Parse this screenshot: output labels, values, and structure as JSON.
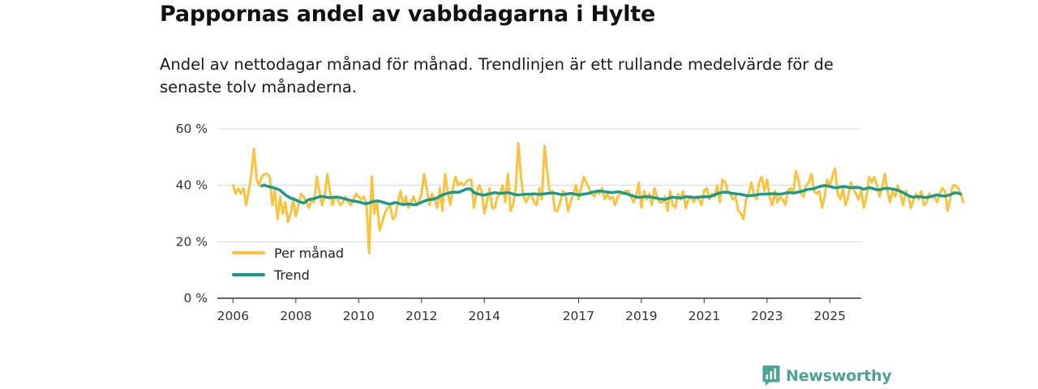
{
  "page": {
    "title": "Pappornas andel av vabbdagarna i Hylte",
    "subtitle": "Andel av nettodagar månad för månad. Trendlinjen är ett rullande medelvärde för de senaste tolv månaderna."
  },
  "brand": {
    "name": "Newsworthy",
    "icon": "newsworthy-logo-icon",
    "color": "#4aa396"
  },
  "colors": {
    "monthly": "#f9c33f",
    "trend": "#1a9a8c",
    "grid": "#d9d9d9",
    "axis": "#333333"
  },
  "chart_data": {
    "type": "line",
    "title": "Pappornas andel av vabbdagarna i Hylte",
    "xlabel": "",
    "ylabel": "",
    "xlim": [
      2005.5,
      2026.0
    ],
    "ylim": [
      0,
      60
    ],
    "y_ticks": [
      0,
      20,
      40,
      60
    ],
    "y_tick_labels": [
      "0 %",
      "20 %",
      "40 %",
      "60 %"
    ],
    "x_ticks": [
      2006,
      2008,
      2010,
      2012,
      2014,
      2017,
      2019,
      2021,
      2023,
      2025
    ],
    "x_tick_labels": [
      "2006",
      "2008",
      "2010",
      "2012",
      "2014",
      "2017",
      "2019",
      "2021",
      "2023",
      "2025"
    ],
    "grid": true,
    "legend_position": "bottom-left",
    "legend": [
      {
        "name": "Per månad",
        "color": "#f9c33f"
      },
      {
        "name": "Trend",
        "color": "#1a9a8c"
      }
    ],
    "series": [
      {
        "name": "Per månad",
        "start": 2006.0,
        "step_months": 1,
        "values": [
          40,
          37,
          39,
          37,
          39,
          33,
          38,
          44,
          53,
          42,
          40,
          43,
          44,
          44,
          43,
          33,
          38,
          28,
          36,
          30,
          34,
          27,
          30,
          35,
          29,
          33,
          37,
          36,
          34,
          32,
          35,
          34,
          43,
          38,
          33,
          36,
          44,
          38,
          33,
          36,
          35,
          33,
          34,
          36,
          34,
          33,
          35,
          37,
          36,
          35,
          36,
          33,
          16,
          43,
          30,
          34,
          24,
          27,
          30,
          32,
          33,
          28,
          29,
          34,
          38,
          33,
          36,
          32,
          34,
          36,
          33,
          34,
          37,
          44,
          39,
          33,
          37,
          35,
          32,
          39,
          31,
          44,
          38,
          33,
          39,
          43,
          40,
          41,
          40,
          41,
          42,
          42,
          32,
          37,
          40,
          38,
          30,
          34,
          39,
          32,
          32,
          36,
          37,
          40,
          34,
          44,
          31,
          33,
          39,
          55,
          43,
          36,
          34,
          36,
          37,
          34,
          33,
          39,
          35,
          54,
          45,
          37,
          38,
          31,
          31,
          34,
          38,
          37,
          31,
          34,
          37,
          40,
          35,
          39,
          43,
          41,
          39,
          37,
          36,
          38,
          37,
          39,
          35,
          37,
          35,
          36,
          33,
          36,
          37,
          37,
          38,
          38,
          36,
          34,
          36,
          41,
          32,
          38,
          35,
          37,
          33,
          39,
          36,
          34,
          34,
          36,
          31,
          38,
          33,
          32,
          37,
          35,
          38,
          32,
          35,
          36,
          34,
          36,
          35,
          33,
          38,
          39,
          35,
          37,
          36,
          40,
          34,
          42,
          41,
          38,
          37,
          35,
          36,
          31,
          30,
          28,
          35,
          37,
          41,
          37,
          35,
          41,
          43,
          38,
          42,
          36,
          33,
          38,
          34,
          36,
          35,
          33,
          38,
          39,
          37,
          45,
          42,
          37,
          36,
          40,
          41,
          44,
          38,
          37,
          38,
          32,
          36,
          42,
          40,
          43,
          46,
          37,
          35,
          39,
          33,
          36,
          41,
          39,
          37,
          35,
          38,
          32,
          36,
          43,
          41,
          43,
          40,
          36,
          39,
          44,
          38,
          34,
          38,
          36,
          40,
          37,
          33,
          38,
          36,
          32,
          35,
          37,
          35,
          38,
          33,
          34,
          37,
          36,
          36,
          34,
          37,
          39,
          38,
          31,
          35,
          40,
          40,
          39,
          37,
          34
        ],
        "color": "#f9c33f"
      },
      {
        "name": "Trend",
        "start": 2006.917,
        "step_months": 1,
        "values": [
          39.8,
          40.1,
          39.7,
          39.5,
          39.3,
          38.9,
          38.7,
          38.2,
          37.4,
          36.6,
          36.0,
          35.5,
          35.2,
          34.8,
          34.3,
          34.0,
          33.7,
          34.4,
          35.0,
          35.1,
          35.3,
          35.6,
          36.0,
          36.1,
          35.9,
          35.7,
          35.6,
          35.7,
          35.8,
          35.8,
          35.6,
          35.4,
          35.1,
          34.9,
          34.6,
          34.4,
          34.3,
          34.1,
          33.9,
          33.6,
          33.5,
          33.8,
          34.1,
          34.3,
          34.5,
          34.3,
          34.1,
          33.8,
          33.5,
          33.4,
          33.6,
          33.9,
          33.7,
          33.4,
          33.2,
          33.3,
          33.4,
          33.3,
          33.1,
          33.2,
          33.6,
          34.0,
          34.4,
          34.7,
          35.0,
          35.0,
          35.2,
          35.6,
          36.1,
          36.6,
          36.9,
          37.2,
          37.4,
          37.5,
          37.6,
          37.5,
          37.8,
          38.2,
          38.6,
          38.8,
          38.5,
          37.5,
          37.0,
          36.9,
          36.6,
          36.5,
          36.8,
          37.0,
          37.2,
          37.4,
          37.3,
          37.1,
          37.2,
          37.3,
          37.4,
          37.2,
          36.9,
          36.7,
          36.6,
          36.7,
          36.8,
          36.8,
          36.9,
          36.9,
          37.0,
          36.9,
          36.8,
          36.9,
          37.0,
          37.1,
          37.2,
          37.3,
          37.2,
          37.0,
          36.8,
          36.7,
          36.9,
          37.0,
          37.1,
          37.0,
          36.8,
          36.6,
          36.7,
          36.9,
          37.0,
          37.2,
          37.5,
          37.7,
          37.9,
          38.0,
          37.9,
          37.7,
          37.6,
          37.5,
          37.4,
          37.6,
          37.7,
          37.6,
          37.3,
          37.1,
          36.8,
          36.5,
          36.2,
          35.9,
          35.7,
          35.8,
          35.9,
          36.0,
          35.9,
          35.8,
          35.6,
          35.4,
          35.2,
          35.1,
          35.0,
          35.3,
          35.6,
          35.8,
          35.7,
          35.6,
          35.5,
          35.7,
          35.9,
          35.9,
          35.8,
          35.7,
          35.7,
          35.8,
          35.9,
          35.9,
          35.9,
          36.0,
          36.3,
          36.6,
          37.0,
          37.3,
          37.5,
          37.6,
          37.5,
          37.3,
          37.1,
          37.0,
          36.9,
          36.8,
          36.6,
          36.4,
          36.3,
          36.4,
          36.5,
          36.6,
          36.8,
          36.9,
          36.9,
          36.9,
          37.0,
          37.0,
          37.0,
          36.9,
          36.9,
          37.0,
          37.2,
          37.4,
          37.4,
          37.3,
          37.4,
          37.6,
          37.8,
          38.1,
          38.4,
          38.6,
          38.7,
          38.8,
          39.2,
          39.5,
          39.8,
          39.9,
          39.8,
          39.6,
          39.3,
          39.1,
          39.2,
          39.4,
          39.6,
          39.5,
          39.3,
          39.1,
          39.2,
          39.3,
          39.2,
          39.0,
          38.6,
          38.9,
          39.2,
          39.0,
          38.7,
          38.4,
          38.5,
          38.7,
          38.9,
          38.9,
          38.8,
          38.7,
          38.5,
          38.2,
          37.9,
          37.4,
          36.9,
          36.4,
          36.0,
          35.8,
          35.9,
          36.0,
          35.9,
          35.7,
          35.7,
          35.9,
          36.1,
          36.4,
          36.6,
          36.4,
          36.2,
          36.2,
          36.4,
          36.7,
          37.1,
          37.4,
          37.2,
          36.9
        ]
      }
    ]
  }
}
